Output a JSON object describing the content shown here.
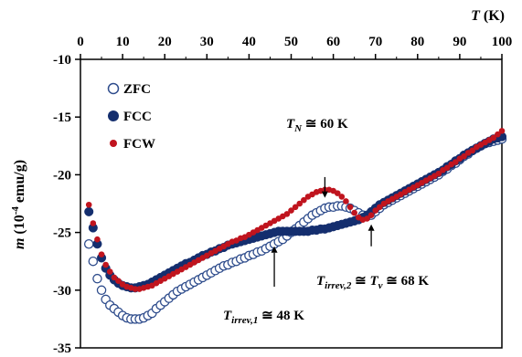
{
  "chart_data": {
    "type": "scatter",
    "xlabel_symbol": "T",
    "xlabel_unit": " (K)",
    "ylabel_symbol": "m",
    "ylabel_unit": " (10",
    "ylabel_exp": "-4",
    "ylabel_tail": " emu/g)",
    "xlim": [
      0,
      100
    ],
    "ylim": [
      -35,
      -10
    ],
    "xticks": [
      0,
      10,
      20,
      30,
      40,
      50,
      60,
      70,
      80,
      90,
      100
    ],
    "yticks": [
      -10,
      -15,
      -20,
      -25,
      -30,
      -35
    ],
    "x_axis_position": "top",
    "grid": false,
    "legend": {
      "placement": "top-left",
      "entries": [
        {
          "label": "ZFC",
          "marker": "open-circle",
          "color": "#2e4c8c"
        },
        {
          "label": "FCC",
          "marker": "filled-circle",
          "color": "#142e6e"
        },
        {
          "label": "FCW",
          "marker": "small-filled-circle",
          "color": "#c0141e"
        }
      ]
    },
    "series": [
      {
        "name": "ZFC",
        "color": "#2e4c8c",
        "marker": "open",
        "x": [
          2,
          3,
          4,
          5,
          6,
          7,
          8,
          9,
          10,
          11,
          12,
          13,
          14,
          15,
          16,
          17,
          18,
          19,
          20,
          21,
          22,
          23,
          24,
          25,
          26,
          27,
          28,
          29,
          30,
          31,
          32,
          33,
          34,
          35,
          36,
          37,
          38,
          39,
          40,
          41,
          42,
          43,
          44,
          45,
          46,
          47,
          48,
          49,
          50,
          51,
          52,
          53,
          54,
          55,
          56,
          57,
          58,
          59,
          60,
          61,
          62,
          63,
          64,
          65,
          66,
          67,
          68,
          69,
          70,
          71,
          72,
          73,
          74,
          75,
          76,
          77,
          78,
          79,
          80,
          81,
          82,
          83,
          84,
          85,
          86,
          87,
          88,
          89,
          90,
          91,
          92,
          93,
          94,
          95,
          96,
          97,
          98,
          99,
          100
        ],
        "y": [
          -26.0,
          -27.5,
          -29.0,
          -30.0,
          -30.8,
          -31.3,
          -31.6,
          -31.9,
          -32.2,
          -32.4,
          -32.5,
          -32.5,
          -32.5,
          -32.4,
          -32.2,
          -32.0,
          -31.6,
          -31.3,
          -31.0,
          -30.7,
          -30.4,
          -30.1,
          -29.9,
          -29.7,
          -29.5,
          -29.3,
          -29.1,
          -28.9,
          -28.7,
          -28.5,
          -28.3,
          -28.1,
          -27.9,
          -27.8,
          -27.6,
          -27.5,
          -27.3,
          -27.2,
          -27.0,
          -26.9,
          -26.7,
          -26.6,
          -26.4,
          -26.2,
          -26.0,
          -25.8,
          -25.6,
          -25.3,
          -25.0,
          -24.7,
          -24.4,
          -24.1,
          -23.8,
          -23.5,
          -23.3,
          -23.1,
          -22.9,
          -22.8,
          -22.8,
          -22.7,
          -22.7,
          -22.8,
          -22.9,
          -23.1,
          -23.3,
          -23.5,
          -23.6,
          -23.5,
          -23.2,
          -22.9,
          -22.6,
          -22.4,
          -22.2,
          -22.0,
          -21.8,
          -21.6,
          -21.4,
          -21.2,
          -21.0,
          -20.8,
          -20.6,
          -20.4,
          -20.2,
          -20.0,
          -19.7,
          -19.5,
          -19.2,
          -19.0,
          -18.7,
          -18.4,
          -18.2,
          -17.9,
          -17.7,
          -17.5,
          -17.3,
          -17.2,
          -17.1,
          -17.0,
          -16.9
        ]
      },
      {
        "name": "FCC",
        "color": "#142e6e",
        "marker": "filled",
        "x": [
          2,
          3,
          4,
          5,
          6,
          7,
          8,
          9,
          10,
          11,
          12,
          13,
          14,
          15,
          16,
          17,
          18,
          19,
          20,
          21,
          22,
          23,
          24,
          25,
          26,
          27,
          28,
          29,
          30,
          31,
          32,
          33,
          34,
          35,
          36,
          37,
          38,
          39,
          40,
          41,
          42,
          43,
          44,
          45,
          46,
          47,
          48,
          49,
          50,
          51,
          52,
          53,
          54,
          55,
          56,
          57,
          58,
          59,
          60,
          61,
          62,
          63,
          64,
          65,
          66,
          67,
          68,
          69,
          70,
          71,
          72,
          73,
          74,
          75,
          76,
          77,
          78,
          79,
          80,
          81,
          82,
          83,
          84,
          85,
          86,
          87,
          88,
          89,
          90,
          91,
          92,
          93,
          94,
          95,
          96,
          97,
          98,
          99,
          100
        ],
        "y": [
          -23.2,
          -24.6,
          -26.0,
          -27.2,
          -28.1,
          -28.7,
          -29.1,
          -29.4,
          -29.6,
          -29.7,
          -29.8,
          -29.8,
          -29.7,
          -29.6,
          -29.5,
          -29.3,
          -29.1,
          -28.9,
          -28.7,
          -28.5,
          -28.3,
          -28.1,
          -27.9,
          -27.7,
          -27.6,
          -27.4,
          -27.2,
          -27.0,
          -26.9,
          -26.7,
          -26.6,
          -26.4,
          -26.3,
          -26.1,
          -26.0,
          -25.9,
          -25.8,
          -25.7,
          -25.6,
          -25.5,
          -25.4,
          -25.3,
          -25.2,
          -25.1,
          -25.0,
          -24.9,
          -24.9,
          -24.9,
          -24.9,
          -24.9,
          -24.9,
          -24.9,
          -24.9,
          -24.8,
          -24.8,
          -24.7,
          -24.7,
          -24.6,
          -24.5,
          -24.4,
          -24.3,
          -24.2,
          -24.1,
          -24.0,
          -23.9,
          -23.7,
          -23.5,
          -23.2,
          -22.9,
          -22.6,
          -22.4,
          -22.2,
          -22.0,
          -21.8,
          -21.6,
          -21.4,
          -21.2,
          -21.0,
          -20.8,
          -20.6,
          -20.4,
          -20.2,
          -20.0,
          -19.8,
          -19.6,
          -19.3,
          -19.1,
          -18.8,
          -18.6,
          -18.3,
          -18.1,
          -17.9,
          -17.7,
          -17.5,
          -17.3,
          -17.1,
          -16.9,
          -16.8,
          -16.7
        ]
      },
      {
        "name": "FCW",
        "color": "#c0141e",
        "marker": "small",
        "x": [
          2,
          3,
          4,
          5,
          6,
          7,
          8,
          9,
          10,
          11,
          12,
          13,
          14,
          15,
          16,
          17,
          18,
          19,
          20,
          21,
          22,
          23,
          24,
          25,
          26,
          27,
          28,
          29,
          30,
          31,
          32,
          33,
          34,
          35,
          36,
          37,
          38,
          39,
          40,
          41,
          42,
          43,
          44,
          45,
          46,
          47,
          48,
          49,
          50,
          51,
          52,
          53,
          54,
          55,
          56,
          57,
          58,
          59,
          60,
          61,
          62,
          63,
          64,
          65,
          66,
          67,
          68,
          69,
          70,
          71,
          72,
          73,
          74,
          75,
          76,
          77,
          78,
          79,
          80,
          81,
          82,
          83,
          84,
          85,
          86,
          87,
          88,
          89,
          90,
          91,
          92,
          93,
          94,
          95,
          96,
          97,
          98,
          99,
          100
        ],
        "y": [
          -22.6,
          -24.2,
          -25.6,
          -26.9,
          -27.8,
          -28.4,
          -28.9,
          -29.2,
          -29.5,
          -29.7,
          -29.8,
          -29.9,
          -29.9,
          -29.8,
          -29.7,
          -29.6,
          -29.4,
          -29.2,
          -29.0,
          -28.8,
          -28.6,
          -28.4,
          -28.2,
          -28.0,
          -27.8,
          -27.6,
          -27.4,
          -27.2,
          -27.0,
          -26.8,
          -26.6,
          -26.4,
          -26.2,
          -26.0,
          -25.8,
          -25.7,
          -25.5,
          -25.4,
          -25.2,
          -25.0,
          -24.8,
          -24.6,
          -24.4,
          -24.2,
          -24.0,
          -23.8,
          -23.6,
          -23.4,
          -23.1,
          -22.8,
          -22.5,
          -22.2,
          -21.9,
          -21.7,
          -21.5,
          -21.4,
          -21.3,
          -21.3,
          -21.4,
          -21.6,
          -21.9,
          -22.3,
          -22.8,
          -23.3,
          -23.7,
          -23.9,
          -23.8,
          -23.5,
          -23.1,
          -22.8,
          -22.5,
          -22.3,
          -22.1,
          -21.9,
          -21.7,
          -21.5,
          -21.3,
          -21.1,
          -20.9,
          -20.7,
          -20.5,
          -20.3,
          -20.1,
          -19.9,
          -19.6,
          -19.4,
          -19.1,
          -18.9,
          -18.6,
          -18.4,
          -18.1,
          -17.9,
          -17.6,
          -17.4,
          -17.2,
          -17.0,
          -16.8,
          -16.5,
          -16.2
        ]
      }
    ],
    "annotations": [
      {
        "id": "tn",
        "parts": [
          {
            "t": "T",
            "i": true
          },
          {
            "t": "N",
            "i": true,
            "sub": true
          },
          {
            "t": " ≅ 60 K"
          }
        ],
        "arrow_x": 58,
        "arrow_from_y": -20.2,
        "arrow_to_y": -22.0
      },
      {
        "id": "tirrev2",
        "parts": [
          {
            "t": "T",
            "i": true
          },
          {
            "t": "irrev,2",
            "i": true,
            "sub": true
          },
          {
            "t": " ≅ "
          },
          {
            "t": "T",
            "i": true
          },
          {
            "t": "v",
            "i": true,
            "sub": true
          },
          {
            "t": " ≅ 68 K"
          }
        ],
        "arrow_x": 69,
        "arrow_from_y": -26.2,
        "arrow_to_y": -24.3
      },
      {
        "id": "tirrev1",
        "parts": [
          {
            "t": "T",
            "i": true
          },
          {
            "t": "irrev,1",
            "i": true,
            "sub": true
          },
          {
            "t": " ≅ 48 K"
          }
        ],
        "arrow_x": 46,
        "arrow_from_y": -29.7,
        "arrow_to_y": -26.2
      }
    ]
  }
}
